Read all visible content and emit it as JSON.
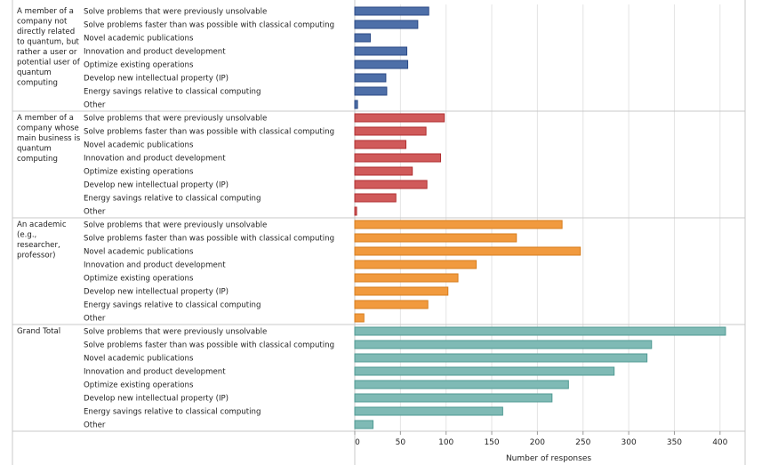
{
  "chart_data": {
    "type": "bar",
    "orientation": "horizontal",
    "xlabel": "Number of responses",
    "xlim": [
      0,
      410
    ],
    "xticks": [
      0,
      50,
      100,
      150,
      200,
      250,
      300,
      350,
      400
    ],
    "grid": "vertical",
    "categories": [
      "Solve problems that were previously unsolvable",
      "Solve problems faster than was possible with classical computing",
      "Novel academic publications",
      "Innovation and product development",
      "Optimize existing operations",
      "Develop new intellectual property (IP)",
      "Energy savings relative to classical computing",
      "Other"
    ],
    "groups": [
      {
        "label": "A member of a company not directly related to quantum, but rather a user or potential user of quantum computing",
        "label_lines": [
          "A member of a",
          "company not",
          "directly related",
          "to quantum, but",
          "rather a user or",
          "potential user of",
          "quantum",
          "computing"
        ],
        "color": "#4e6fa8",
        "stroke": "#2b4a86",
        "values": [
          81,
          69,
          17,
          57,
          58,
          34,
          35,
          3
        ]
      },
      {
        "label": "A member of a company whose main business is quantum computing",
        "label_lines": [
          "A member of a",
          "company whose",
          "main business is",
          "quantum",
          "computing"
        ],
        "color": "#d05a5a",
        "stroke": "#b02f30",
        "values": [
          98,
          78,
          56,
          94,
          63,
          79,
          45,
          2
        ]
      },
      {
        "label": "An academic (e.g., researcher, professor)",
        "label_lines": [
          "An academic",
          "(e.g.,",
          "researcher,",
          "professor)"
        ],
        "color": "#f19a3e",
        "stroke": "#d77d1e",
        "values": [
          227,
          177,
          247,
          133,
          113,
          102,
          80,
          10
        ]
      },
      {
        "label": "Grand Total",
        "label_lines": [
          "Grand Total"
        ],
        "color": "#7fbab5",
        "stroke": "#4f9a93",
        "values": [
          406,
          325,
          320,
          284,
          234,
          216,
          162,
          20
        ]
      }
    ]
  }
}
